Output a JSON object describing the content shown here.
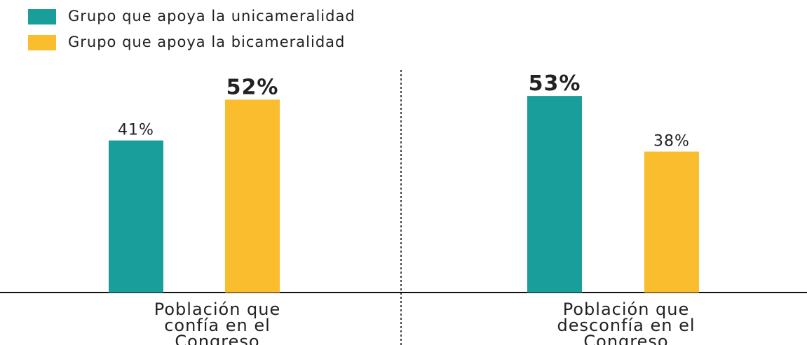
{
  "chart_data": {
    "type": "bar",
    "categories": [
      "Población que confía en el Congreso",
      "Población que desconfía en el Congreso"
    ],
    "series": [
      {
        "name": "Grupo que apoya la unicameralidad",
        "color": "#1a9e9b",
        "values": [
          41,
          53
        ],
        "value_labels": [
          "41%",
          "53%"
        ]
      },
      {
        "name": "Grupo que apoya la bicameralidad",
        "color": "#f9bd2e",
        "values": [
          52,
          38
        ],
        "value_labels": [
          "52%",
          "38%"
        ]
      }
    ]
  }
}
